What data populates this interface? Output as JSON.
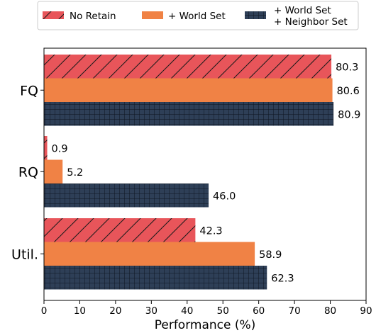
{
  "chart_data": {
    "type": "bar",
    "orientation": "horizontal",
    "categories": [
      "FQ",
      "RQ",
      "Util."
    ],
    "series": [
      {
        "name": "No Retain",
        "values": [
          80.3,
          0.9,
          42.3
        ],
        "color": "#e8555a",
        "pattern": "diagonal-hatch"
      },
      {
        "name": "+ World Set",
        "values": [
          80.6,
          5.2,
          58.9
        ],
        "color": "#f08245",
        "pattern": "solid"
      },
      {
        "name": "+ World Set\n+ Neighbor Set",
        "values": [
          80.9,
          46.0,
          62.3
        ],
        "color": "#2e3f57",
        "pattern": "grid-hatch"
      }
    ],
    "xlabel": "Performance (%)",
    "ylabel": "",
    "xlim": [
      0,
      90
    ],
    "xticks": [
      0,
      10,
      20,
      30,
      40,
      50,
      60,
      70,
      80,
      90
    ],
    "value_labels": [
      "80.3",
      "80.6",
      "80.9",
      "0.9",
      "5.2",
      "46.0",
      "42.3",
      "58.9",
      "62.3"
    ],
    "legend_position": "top",
    "grid": false
  }
}
